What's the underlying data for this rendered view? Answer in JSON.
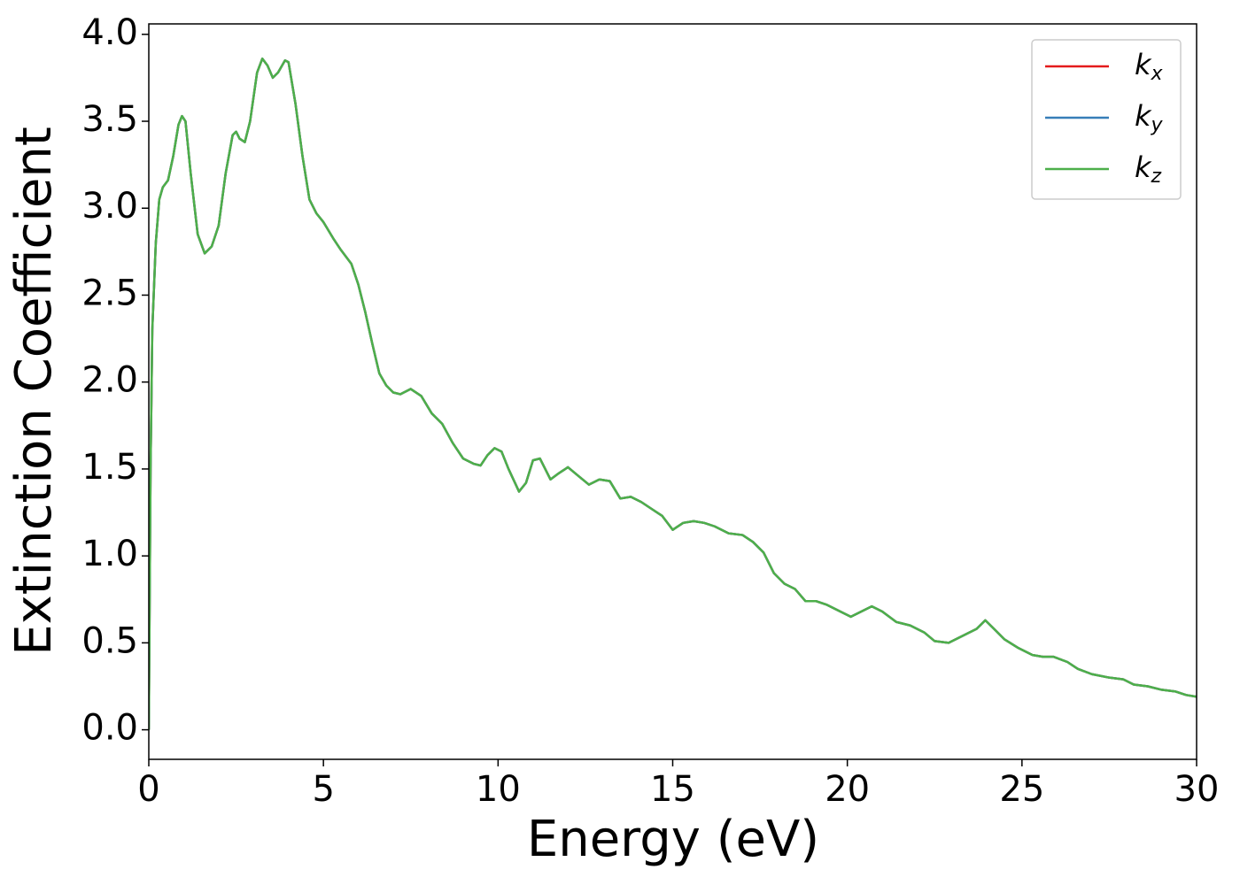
{
  "chart_data": {
    "type": "line",
    "xlabel": "Energy (eV)",
    "ylabel": "Extinction Coefficient",
    "x": [
      0,
      0.05,
      0.1,
      0.2,
      0.3,
      0.4,
      0.55,
      0.7,
      0.85,
      0.95,
      1.05,
      1.2,
      1.4,
      1.6,
      1.8,
      2.0,
      2.2,
      2.4,
      2.5,
      2.6,
      2.75,
      2.9,
      3.1,
      3.25,
      3.4,
      3.55,
      3.7,
      3.9,
      4.0,
      4.2,
      4.4,
      4.6,
      4.8,
      5.0,
      5.3,
      5.5,
      5.8,
      6.0,
      6.2,
      6.4,
      6.6,
      6.8,
      7.0,
      7.2,
      7.5,
      7.8,
      8.1,
      8.4,
      8.7,
      9.0,
      9.3,
      9.5,
      9.7,
      9.9,
      10.1,
      10.3,
      10.6,
      10.8,
      11.0,
      11.2,
      11.5,
      11.7,
      12.0,
      12.3,
      12.6,
      12.9,
      13.2,
      13.5,
      13.8,
      14.1,
      14.4,
      14.7,
      15.0,
      15.3,
      15.6,
      15.9,
      16.2,
      16.6,
      17.0,
      17.3,
      17.6,
      17.9,
      18.2,
      18.5,
      18.8,
      19.1,
      19.4,
      19.8,
      20.1,
      20.4,
      20.7,
      21.0,
      21.4,
      21.8,
      22.2,
      22.5,
      22.9,
      23.3,
      23.7,
      23.95,
      24.2,
      24.5,
      24.9,
      25.3,
      25.6,
      25.9,
      26.3,
      26.6,
      27.0,
      27.5,
      27.9,
      28.2,
      28.6,
      29.0,
      29.4,
      29.7,
      30.0
    ],
    "series": [
      {
        "name": "kx",
        "color": "#e41a1c",
        "values": [
          0.0,
          1.5,
          2.3,
          2.8,
          3.05,
          3.12,
          3.16,
          3.3,
          3.48,
          3.53,
          3.5,
          3.2,
          2.85,
          2.74,
          2.78,
          2.9,
          3.2,
          3.42,
          3.44,
          3.4,
          3.38,
          3.5,
          3.78,
          3.86,
          3.82,
          3.75,
          3.78,
          3.85,
          3.84,
          3.6,
          3.3,
          3.05,
          2.97,
          2.92,
          2.82,
          2.76,
          2.68,
          2.56,
          2.4,
          2.22,
          2.05,
          1.98,
          1.94,
          1.93,
          1.96,
          1.92,
          1.82,
          1.76,
          1.65,
          1.56,
          1.53,
          1.52,
          1.58,
          1.62,
          1.6,
          1.5,
          1.37,
          1.42,
          1.55,
          1.56,
          1.44,
          1.47,
          1.51,
          1.46,
          1.41,
          1.44,
          1.43,
          1.33,
          1.34,
          1.31,
          1.27,
          1.23,
          1.15,
          1.19,
          1.2,
          1.19,
          1.17,
          1.13,
          1.12,
          1.08,
          1.02,
          0.9,
          0.84,
          0.81,
          0.74,
          0.74,
          0.72,
          0.68,
          0.65,
          0.68,
          0.71,
          0.68,
          0.62,
          0.6,
          0.56,
          0.51,
          0.5,
          0.54,
          0.58,
          0.63,
          0.58,
          0.52,
          0.47,
          0.43,
          0.42,
          0.42,
          0.39,
          0.35,
          0.32,
          0.3,
          0.29,
          0.26,
          0.25,
          0.23,
          0.22,
          0.2,
          0.19
        ]
      },
      {
        "name": "ky",
        "color": "#377eb8",
        "values": [
          0.0,
          1.5,
          2.3,
          2.8,
          3.05,
          3.12,
          3.16,
          3.3,
          3.48,
          3.53,
          3.5,
          3.2,
          2.85,
          2.74,
          2.78,
          2.9,
          3.2,
          3.42,
          3.44,
          3.4,
          3.38,
          3.5,
          3.78,
          3.86,
          3.82,
          3.75,
          3.78,
          3.85,
          3.84,
          3.6,
          3.3,
          3.05,
          2.97,
          2.92,
          2.82,
          2.76,
          2.68,
          2.56,
          2.4,
          2.22,
          2.05,
          1.98,
          1.94,
          1.93,
          1.96,
          1.92,
          1.82,
          1.76,
          1.65,
          1.56,
          1.53,
          1.52,
          1.58,
          1.62,
          1.6,
          1.5,
          1.37,
          1.42,
          1.55,
          1.56,
          1.44,
          1.47,
          1.51,
          1.46,
          1.41,
          1.44,
          1.43,
          1.33,
          1.34,
          1.31,
          1.27,
          1.23,
          1.15,
          1.19,
          1.2,
          1.19,
          1.17,
          1.13,
          1.12,
          1.08,
          1.02,
          0.9,
          0.84,
          0.81,
          0.74,
          0.74,
          0.72,
          0.68,
          0.65,
          0.68,
          0.71,
          0.68,
          0.62,
          0.6,
          0.56,
          0.51,
          0.5,
          0.54,
          0.58,
          0.63,
          0.58,
          0.52,
          0.47,
          0.43,
          0.42,
          0.42,
          0.39,
          0.35,
          0.32,
          0.3,
          0.29,
          0.26,
          0.25,
          0.23,
          0.22,
          0.2,
          0.19
        ]
      },
      {
        "name": "kz",
        "color": "#4daf4a",
        "values": [
          0.0,
          1.5,
          2.3,
          2.8,
          3.05,
          3.12,
          3.16,
          3.3,
          3.48,
          3.53,
          3.5,
          3.2,
          2.85,
          2.74,
          2.78,
          2.9,
          3.2,
          3.42,
          3.44,
          3.4,
          3.38,
          3.5,
          3.78,
          3.86,
          3.82,
          3.75,
          3.78,
          3.85,
          3.84,
          3.6,
          3.3,
          3.05,
          2.97,
          2.92,
          2.82,
          2.76,
          2.68,
          2.56,
          2.4,
          2.22,
          2.05,
          1.98,
          1.94,
          1.93,
          1.96,
          1.92,
          1.82,
          1.76,
          1.65,
          1.56,
          1.53,
          1.52,
          1.58,
          1.62,
          1.6,
          1.5,
          1.37,
          1.42,
          1.55,
          1.56,
          1.44,
          1.47,
          1.51,
          1.46,
          1.41,
          1.44,
          1.43,
          1.33,
          1.34,
          1.31,
          1.27,
          1.23,
          1.15,
          1.19,
          1.2,
          1.19,
          1.17,
          1.13,
          1.12,
          1.08,
          1.02,
          0.9,
          0.84,
          0.81,
          0.74,
          0.74,
          0.72,
          0.68,
          0.65,
          0.68,
          0.71,
          0.68,
          0.62,
          0.6,
          0.56,
          0.51,
          0.5,
          0.54,
          0.58,
          0.63,
          0.58,
          0.52,
          0.47,
          0.43,
          0.42,
          0.42,
          0.39,
          0.35,
          0.32,
          0.3,
          0.29,
          0.26,
          0.25,
          0.23,
          0.22,
          0.2,
          0.19
        ]
      }
    ],
    "xlim": [
      0,
      30
    ],
    "xticks": [
      0,
      5,
      10,
      15,
      20,
      25,
      30
    ],
    "ylim": [
      -0.17,
      4.06
    ],
    "yticks": [
      {
        "value": 0,
        "label": "0.0"
      },
      {
        "value": 0.5,
        "label": "0.5"
      },
      {
        "value": 1,
        "label": "1.0"
      },
      {
        "value": 1.5,
        "label": "1.5"
      },
      {
        "value": 2,
        "label": "2.0"
      },
      {
        "value": 2.5,
        "label": "2.5"
      },
      {
        "value": 3,
        "label": "3.0"
      },
      {
        "value": 3.5,
        "label": "3.5"
      },
      {
        "value": 4,
        "label": "4.0"
      }
    ],
    "grid": false,
    "legend": "upper right"
  }
}
